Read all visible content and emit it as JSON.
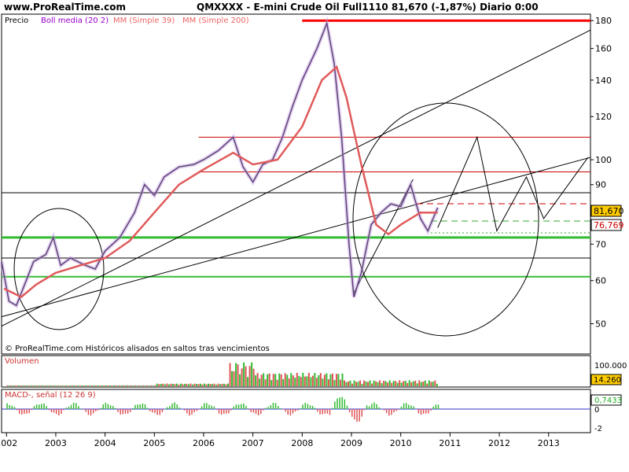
{
  "header": {
    "site": "www.ProRealTime.com",
    "title": "QMXXXX - E-mini Crude Oil Full1110    81,670 (-1,87%)   Diario  0:00"
  },
  "legend": {
    "items": [
      {
        "label": "Precio",
        "color": "#000000"
      },
      {
        "label": "Boll media (20 2)",
        "color": "#9900cc"
      },
      {
        "label": "MM (Simple 39)",
        "color": "#ee6666"
      },
      {
        "label": "MM (Simple 200)",
        "color": "#ee6666"
      }
    ]
  },
  "footnote": "© ProRealTime.com Históricos alisados en saltos tras vencimientos",
  "price_boxes": {
    "last": "81,670",
    "ma": "76,769"
  },
  "volume_panel": {
    "label": "Volumen",
    "tick": "100.000",
    "box": "14.260"
  },
  "macd_panel": {
    "label": "MACD-, señal (12 26 9)",
    "box": "0,7433",
    "tick_zero": "0",
    "tick_neg": "-2"
  },
  "chart_data": {
    "type": "line",
    "x_ticks": [
      "2002",
      "2003",
      "2004",
      "2005",
      "2006",
      "2007",
      "2008",
      "2009",
      "2010",
      "2011",
      "2012",
      "2013"
    ],
    "y_ticks": [
      50,
      60,
      70,
      80,
      90,
      100,
      120,
      140,
      160,
      180
    ],
    "y_tick_labels": [
      "50",
      "60",
      "70",
      "",
      "90",
      "100",
      "120",
      "140",
      "160",
      "180"
    ],
    "y_scale": "log",
    "series": [
      {
        "name": "Precio",
        "color": "#2e8b2e",
        "points": [
          [
            2001.9,
            65
          ],
          [
            2002.05,
            55
          ],
          [
            2002.2,
            54
          ],
          [
            2002.4,
            60
          ],
          [
            2002.55,
            65
          ],
          [
            2002.8,
            67
          ],
          [
            2002.95,
            72
          ],
          [
            2003.1,
            64
          ],
          [
            2003.3,
            66
          ],
          [
            2003.6,
            64
          ],
          [
            2003.8,
            63
          ],
          [
            2004.0,
            68
          ],
          [
            2004.3,
            72
          ],
          [
            2004.6,
            80
          ],
          [
            2004.8,
            90
          ],
          [
            2005.0,
            86
          ],
          [
            2005.2,
            93
          ],
          [
            2005.5,
            97
          ],
          [
            2005.8,
            98
          ],
          [
            2006.0,
            100
          ],
          [
            2006.3,
            104
          ],
          [
            2006.6,
            110
          ],
          [
            2006.8,
            97
          ],
          [
            2007.0,
            91
          ],
          [
            2007.2,
            98
          ],
          [
            2007.4,
            100
          ],
          [
            2007.6,
            110
          ],
          [
            2007.8,
            125
          ],
          [
            2008.0,
            140
          ],
          [
            2008.3,
            160
          ],
          [
            2008.5,
            178
          ],
          [
            2008.65,
            150
          ],
          [
            2008.8,
            110
          ],
          [
            2008.95,
            70
          ],
          [
            2009.05,
            56
          ],
          [
            2009.2,
            62
          ],
          [
            2009.4,
            76
          ],
          [
            2009.6,
            80
          ],
          [
            2009.8,
            83
          ],
          [
            2010.0,
            82
          ],
          [
            2010.2,
            90
          ],
          [
            2010.4,
            78
          ],
          [
            2010.55,
            74
          ],
          [
            2010.75,
            81.67
          ]
        ]
      },
      {
        "name": "MM (Simple 200)",
        "color": "#e05a5a",
        "points": [
          [
            2001.95,
            58
          ],
          [
            2002.3,
            56
          ],
          [
            2002.6,
            59
          ],
          [
            2003.0,
            62
          ],
          [
            2003.5,
            64
          ],
          [
            2004.0,
            66
          ],
          [
            2004.5,
            71
          ],
          [
            2005.0,
            80
          ],
          [
            2005.5,
            90
          ],
          [
            2006.0,
            96
          ],
          [
            2006.6,
            103
          ],
          [
            2007.0,
            98
          ],
          [
            2007.5,
            100
          ],
          [
            2008.0,
            115
          ],
          [
            2008.4,
            140
          ],
          [
            2008.7,
            148
          ],
          [
            2008.9,
            130
          ],
          [
            2009.2,
            98
          ],
          [
            2009.5,
            76
          ],
          [
            2009.75,
            73
          ],
          [
            2010.0,
            76
          ],
          [
            2010.4,
            80
          ],
          [
            2010.75,
            80
          ]
        ]
      }
    ],
    "horizontal_levels": [
      {
        "y": 180,
        "color": "#ff0000"
      },
      {
        "y": 110,
        "color": "#cc0000"
      },
      {
        "y": 95,
        "color": "#cc0000"
      },
      {
        "y": 87,
        "color": "#000000"
      },
      {
        "y": 72,
        "color": "#33bb33"
      },
      {
        "y": 66,
        "color": "#000000"
      },
      {
        "y": 61,
        "color": "#33bb33"
      }
    ],
    "trendlines": [
      [
        [
          2001.9,
          49.5
        ],
        [
          2013.85,
          173
        ]
      ],
      [
        [
          2001.9,
          51.5
        ],
        [
          2013.85,
          101
        ]
      ],
      [
        [
          2009.05,
          57
        ],
        [
          2010.25,
          92
        ]
      ]
    ],
    "projection_path": [
      [
        2010.75,
        75
      ],
      [
        2011.55,
        110
      ],
      [
        2011.95,
        74
      ],
      [
        2012.55,
        93
      ],
      [
        2012.9,
        78
      ],
      [
        2013.8,
        101
      ]
    ],
    "volume": {
      "max": 120000,
      "tick": 100000
    },
    "macd": {
      "ymin": -2.6,
      "ymax": 1.6
    }
  }
}
